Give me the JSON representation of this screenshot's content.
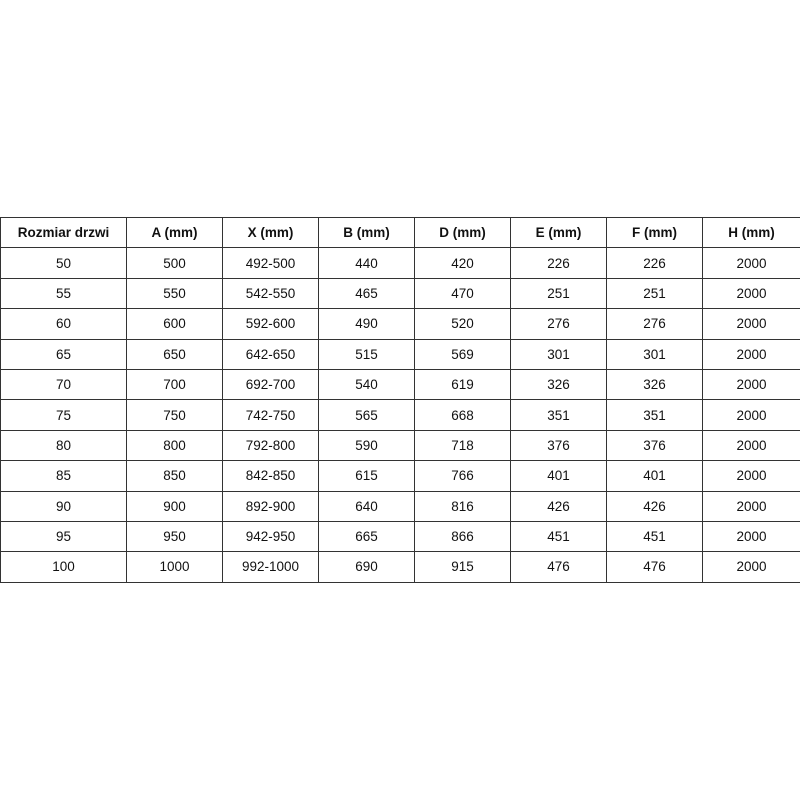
{
  "table": {
    "headers": [
      "Rozmiar drzwi",
      "A (mm)",
      "X (mm)",
      "B (mm)",
      "D (mm)",
      "E (mm)",
      "F (mm)",
      "H (mm)"
    ],
    "rows": [
      [
        "50",
        "500",
        "492-500",
        "440",
        "420",
        "226",
        "226",
        "2000"
      ],
      [
        "55",
        "550",
        "542-550",
        "465",
        "470",
        "251",
        "251",
        "2000"
      ],
      [
        "60",
        "600",
        "592-600",
        "490",
        "520",
        "276",
        "276",
        "2000"
      ],
      [
        "65",
        "650",
        "642-650",
        "515",
        "569",
        "301",
        "301",
        "2000"
      ],
      [
        "70",
        "700",
        "692-700",
        "540",
        "619",
        "326",
        "326",
        "2000"
      ],
      [
        "75",
        "750",
        "742-750",
        "565",
        "668",
        "351",
        "351",
        "2000"
      ],
      [
        "80",
        "800",
        "792-800",
        "590",
        "718",
        "376",
        "376",
        "2000"
      ],
      [
        "85",
        "850",
        "842-850",
        "615",
        "766",
        "401",
        "401",
        "2000"
      ],
      [
        "90",
        "900",
        "892-900",
        "640",
        "816",
        "426",
        "426",
        "2000"
      ],
      [
        "95",
        "950",
        "942-950",
        "665",
        "866",
        "451",
        "451",
        "2000"
      ],
      [
        "100",
        "1000",
        "992-1000",
        "690",
        "915",
        "476",
        "476",
        "2000"
      ]
    ]
  }
}
